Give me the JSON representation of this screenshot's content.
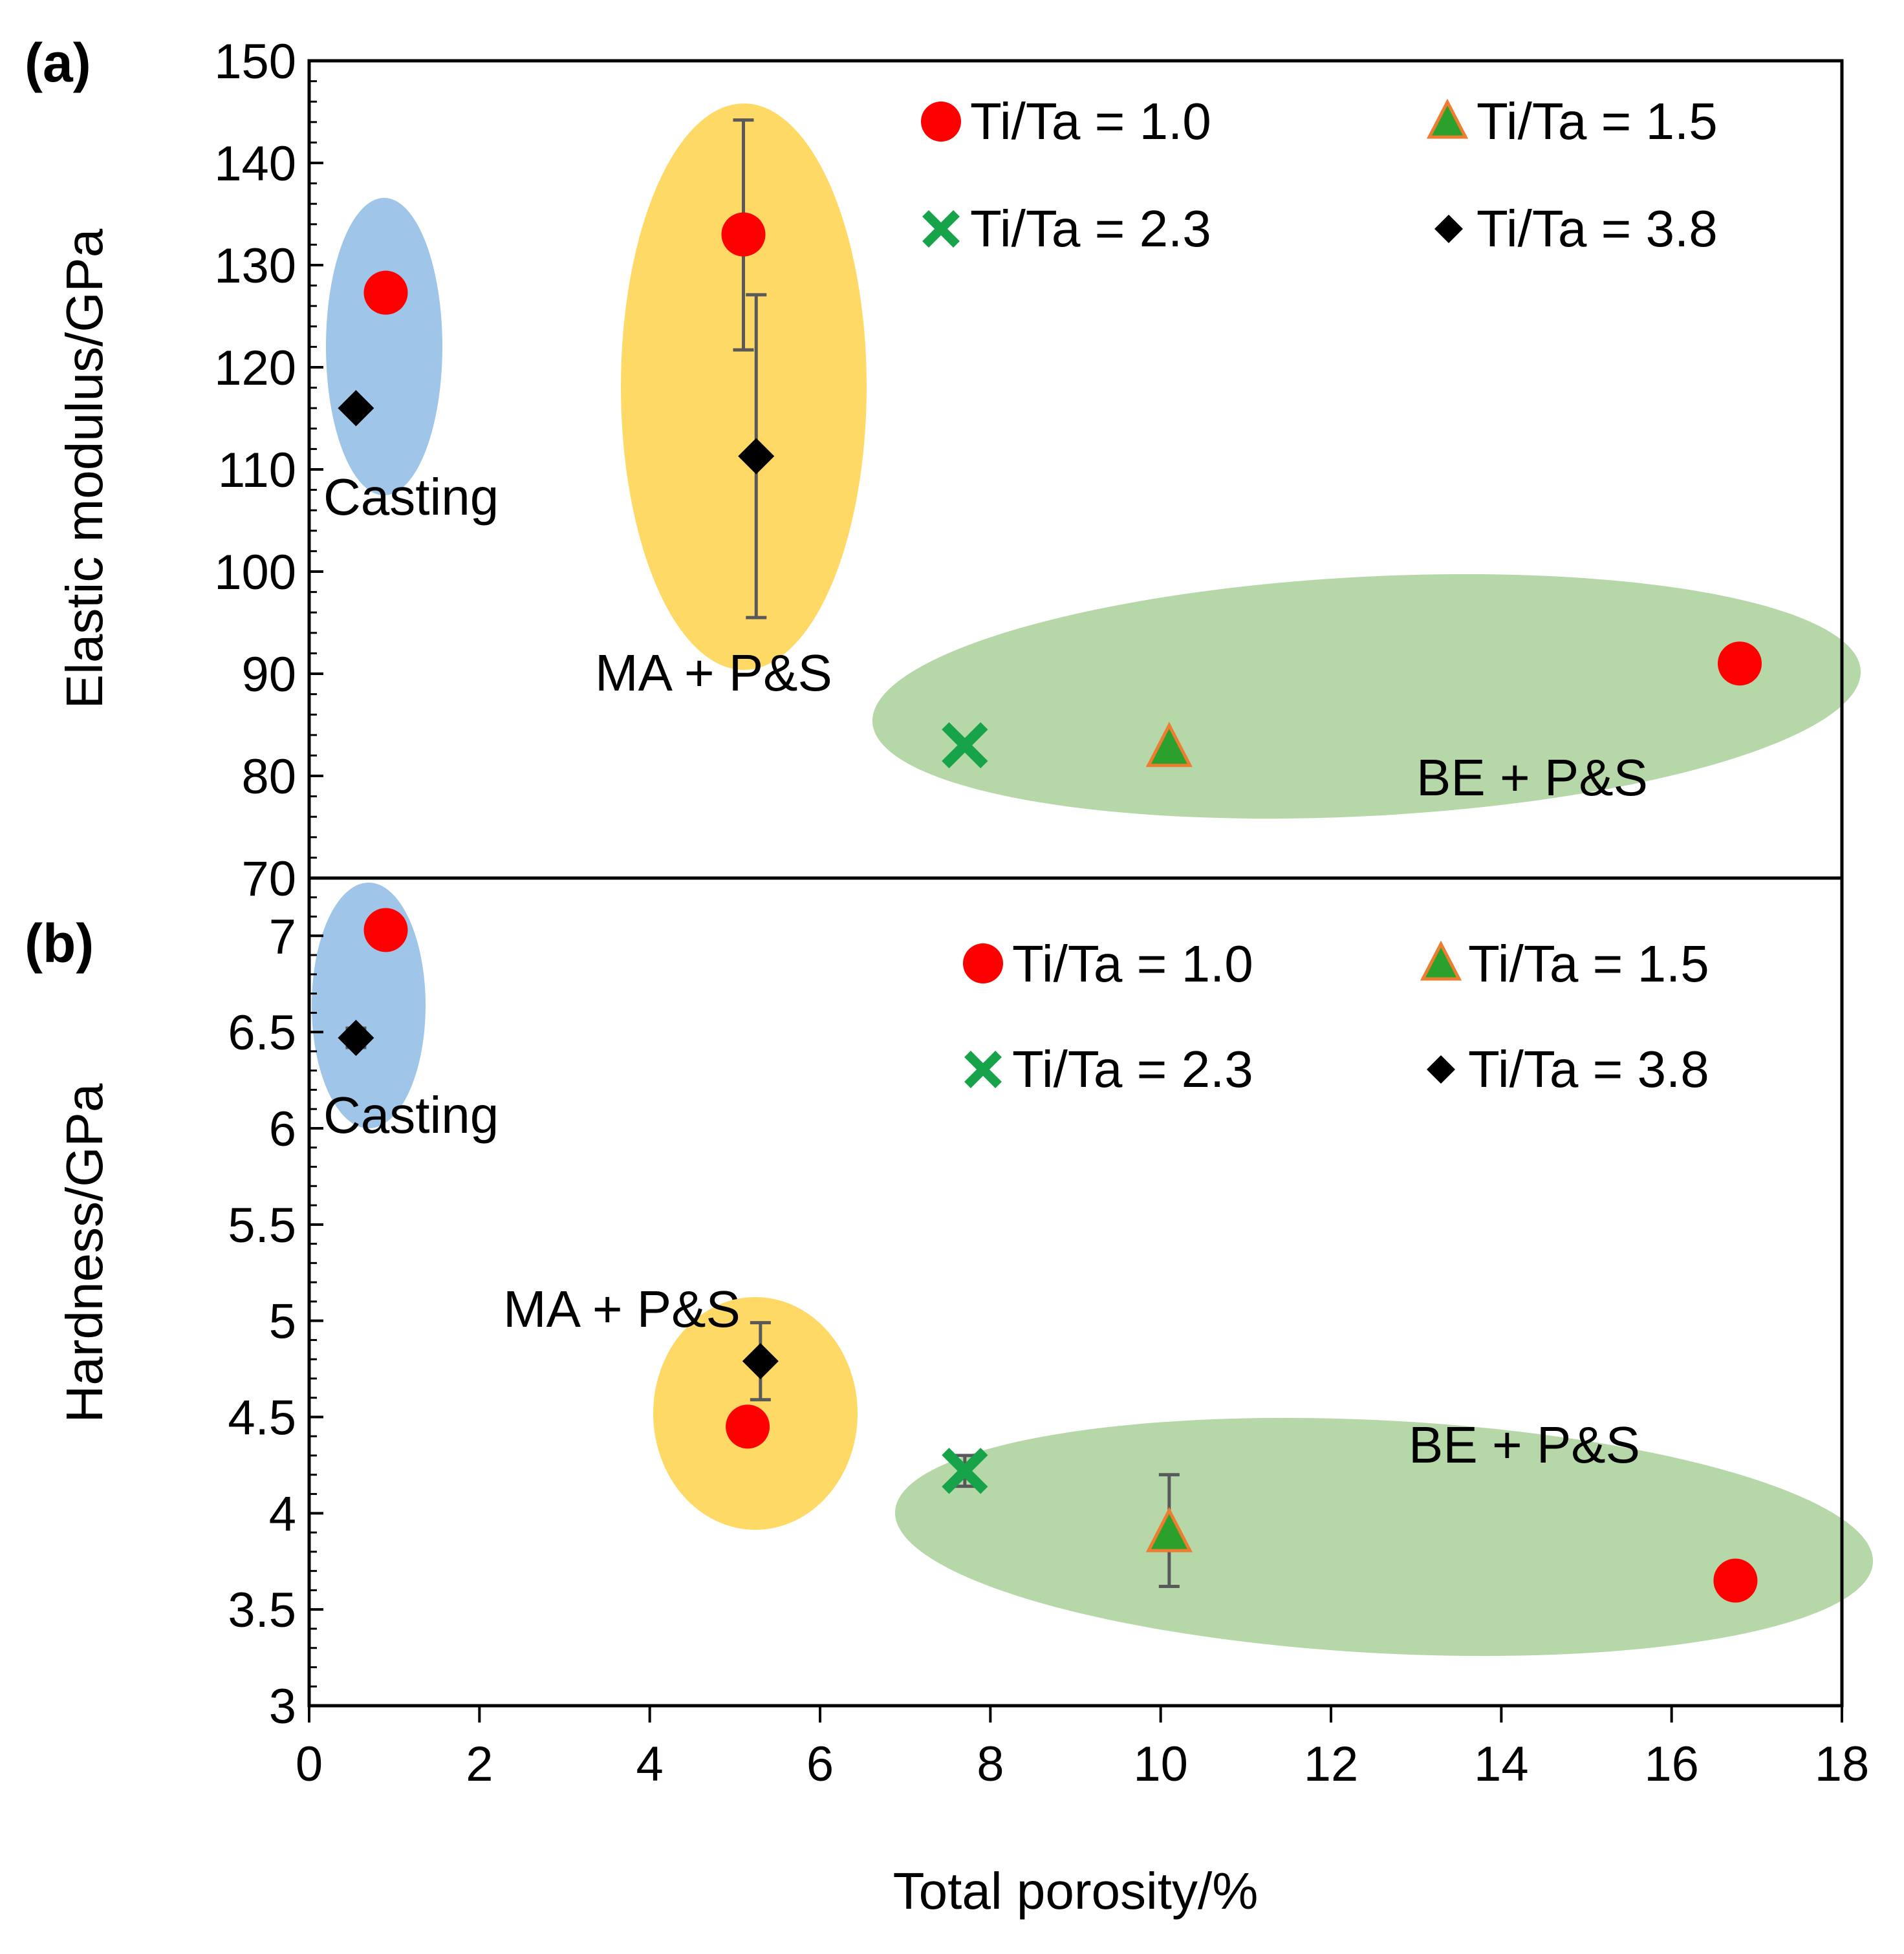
{
  "chart_data": [
    {
      "type": "scatter",
      "panel_label": "(a)",
      "ylabel": "Elastic modulus/GPa",
      "xlabel": "",
      "xlim": [
        0,
        18
      ],
      "ylim": [
        70,
        150
      ],
      "y_ticks": [
        "70",
        "80",
        "90",
        "100",
        "110",
        "120",
        "130",
        "140",
        "150"
      ],
      "legend_placement": "top-right",
      "legend": [
        "Ti/Ta = 1.0",
        "Ti/Ta = 1.5",
        "Ti/Ta = 2.3",
        "Ti/Ta = 3.8"
      ],
      "series": [
        {
          "name": "Ti/Ta = 1.0",
          "marker": "circle",
          "color": "#ff0000",
          "points": [
            {
              "x": 0.9,
              "y": 127.3
            },
            {
              "x": 5.1,
              "y": 133.0,
              "err_low": 11.3,
              "err_high": 11.2
            },
            {
              "x": 16.8,
              "y": 91.0
            }
          ]
        },
        {
          "name": "Ti/Ta = 1.5",
          "marker": "triangle",
          "color": "#2ca02c",
          "edge": "#ed7d31",
          "points": [
            {
              "x": 10.1,
              "y": 82.8
            }
          ]
        },
        {
          "name": "Ti/Ta = 2.3",
          "marker": "x",
          "color": "#16a34a",
          "points": [
            {
              "x": 7.7,
              "y": 83.0
            }
          ]
        },
        {
          "name": "Ti/Ta = 3.8",
          "marker": "diamond",
          "color": "#000000",
          "points": [
            {
              "x": 0.55,
              "y": 116.0
            },
            {
              "x": 5.25,
              "y": 111.3,
              "err_low": 15.8,
              "err_high": 15.8
            }
          ]
        }
      ],
      "regions": [
        {
          "label": "Casting",
          "color": "#9fc5e8"
        },
        {
          "label": "MA + P&S",
          "color": "#ffd966"
        },
        {
          "label": "BE + P&S",
          "color": "#b6d7a8"
        }
      ]
    },
    {
      "type": "scatter",
      "panel_label": "(b)",
      "ylabel": "Hardness/GPa",
      "xlabel": "Total porosity/%",
      "xlim": [
        0,
        18
      ],
      "ylim": [
        3,
        7.3
      ],
      "x_ticks": [
        "0",
        "2",
        "4",
        "6",
        "8",
        "10",
        "12",
        "14",
        "16",
        "18"
      ],
      "y_ticks": [
        "3",
        "3.5",
        "4",
        "4.5",
        "5",
        "5.5",
        "6",
        "6.5",
        "7"
      ],
      "legend_placement": "top-right",
      "legend": [
        "Ti/Ta = 1.0",
        "Ti/Ta = 1.5",
        "Ti/Ta = 2.3",
        "Ti/Ta = 3.8"
      ],
      "series": [
        {
          "name": "Ti/Ta = 1.0",
          "marker": "circle",
          "color": "#ff0000",
          "points": [
            {
              "x": 0.9,
              "y": 7.03
            },
            {
              "x": 5.15,
              "y": 4.45
            },
            {
              "x": 16.75,
              "y": 3.65
            }
          ]
        },
        {
          "name": "Ti/Ta = 1.5",
          "marker": "triangle",
          "color": "#2ca02c",
          "edge": "#ed7d31",
          "points": [
            {
              "x": 10.1,
              "y": 3.9,
              "err_low": 0.28,
              "err_high": 0.3
            }
          ]
        },
        {
          "name": "Ti/Ta = 2.3",
          "marker": "x",
          "color": "#16a34a",
          "points": [
            {
              "x": 7.7,
              "y": 4.22,
              "err_low": 0.08,
              "err_high": 0.08
            }
          ]
        },
        {
          "name": "Ti/Ta = 3.8",
          "marker": "diamond",
          "color": "#000000",
          "points": [
            {
              "x": 0.55,
              "y": 6.47,
              "err_low": 0.05,
              "err_high": 0.05
            },
            {
              "x": 5.3,
              "y": 4.79,
              "err_low": 0.2,
              "err_high": 0.2
            }
          ]
        }
      ],
      "regions": [
        {
          "label": "Casting",
          "color": "#9fc5e8"
        },
        {
          "label": "MA + P&S",
          "color": "#ffd966"
        },
        {
          "label": "BE + P&S",
          "color": "#b6d7a8"
        }
      ]
    }
  ]
}
